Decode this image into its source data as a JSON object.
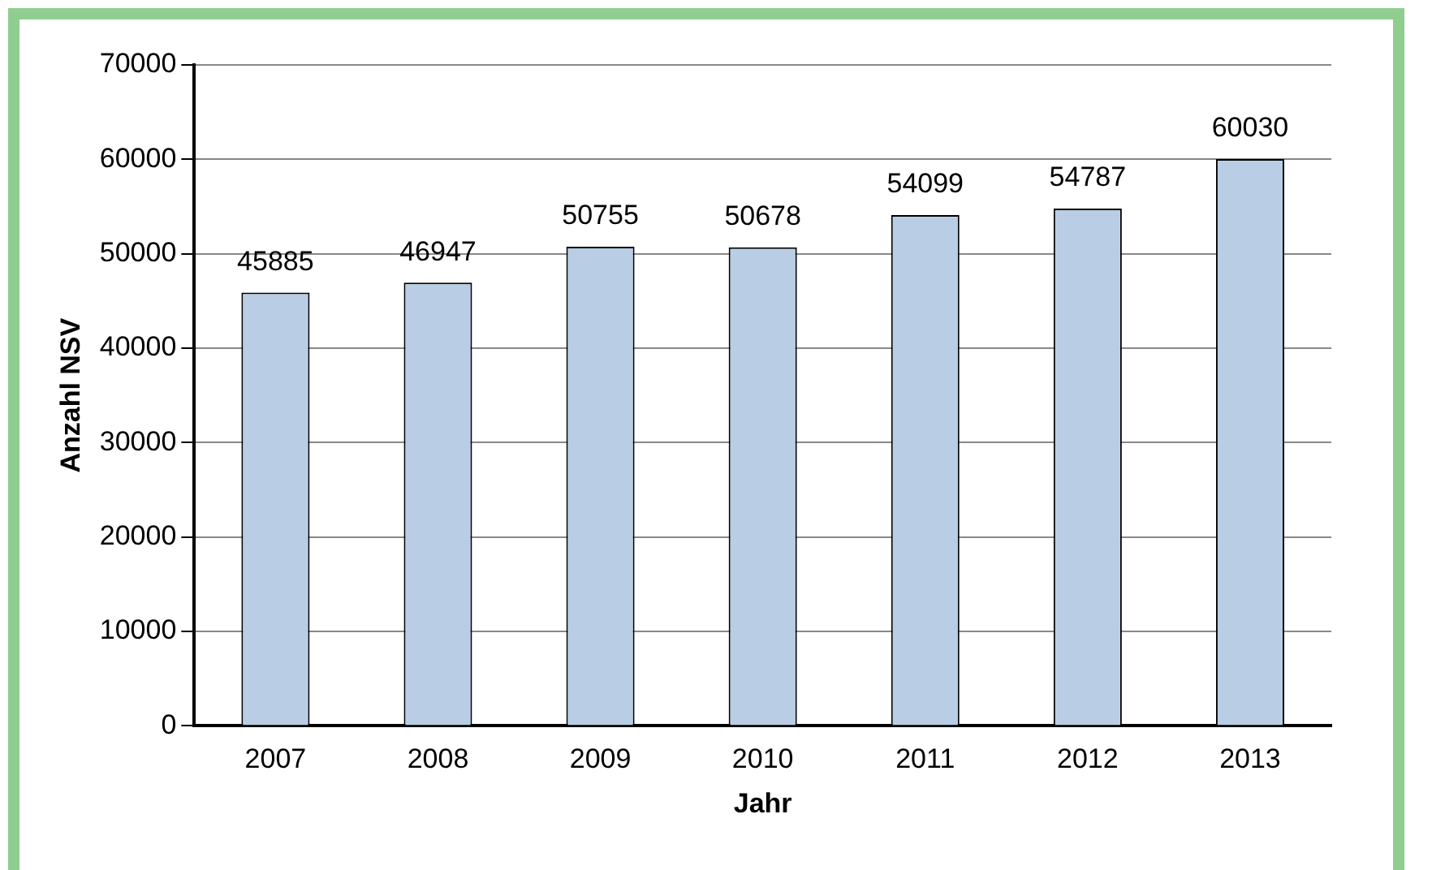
{
  "chart_data": {
    "type": "bar",
    "xlabel": "Jahr",
    "ylabel": "Anzahl NSV",
    "categories": [
      "2007",
      "2008",
      "2009",
      "2010",
      "2011",
      "2012",
      "2013"
    ],
    "values": [
      45885,
      46947,
      50755,
      50678,
      54099,
      54787,
      60030
    ],
    "color": "#b9cde5",
    "ylim": [
      0,
      70000
    ],
    "yticks": [
      0,
      10000,
      20000,
      30000,
      40000,
      50000,
      60000,
      70000
    ],
    "grid": "y",
    "data_labels": true
  }
}
